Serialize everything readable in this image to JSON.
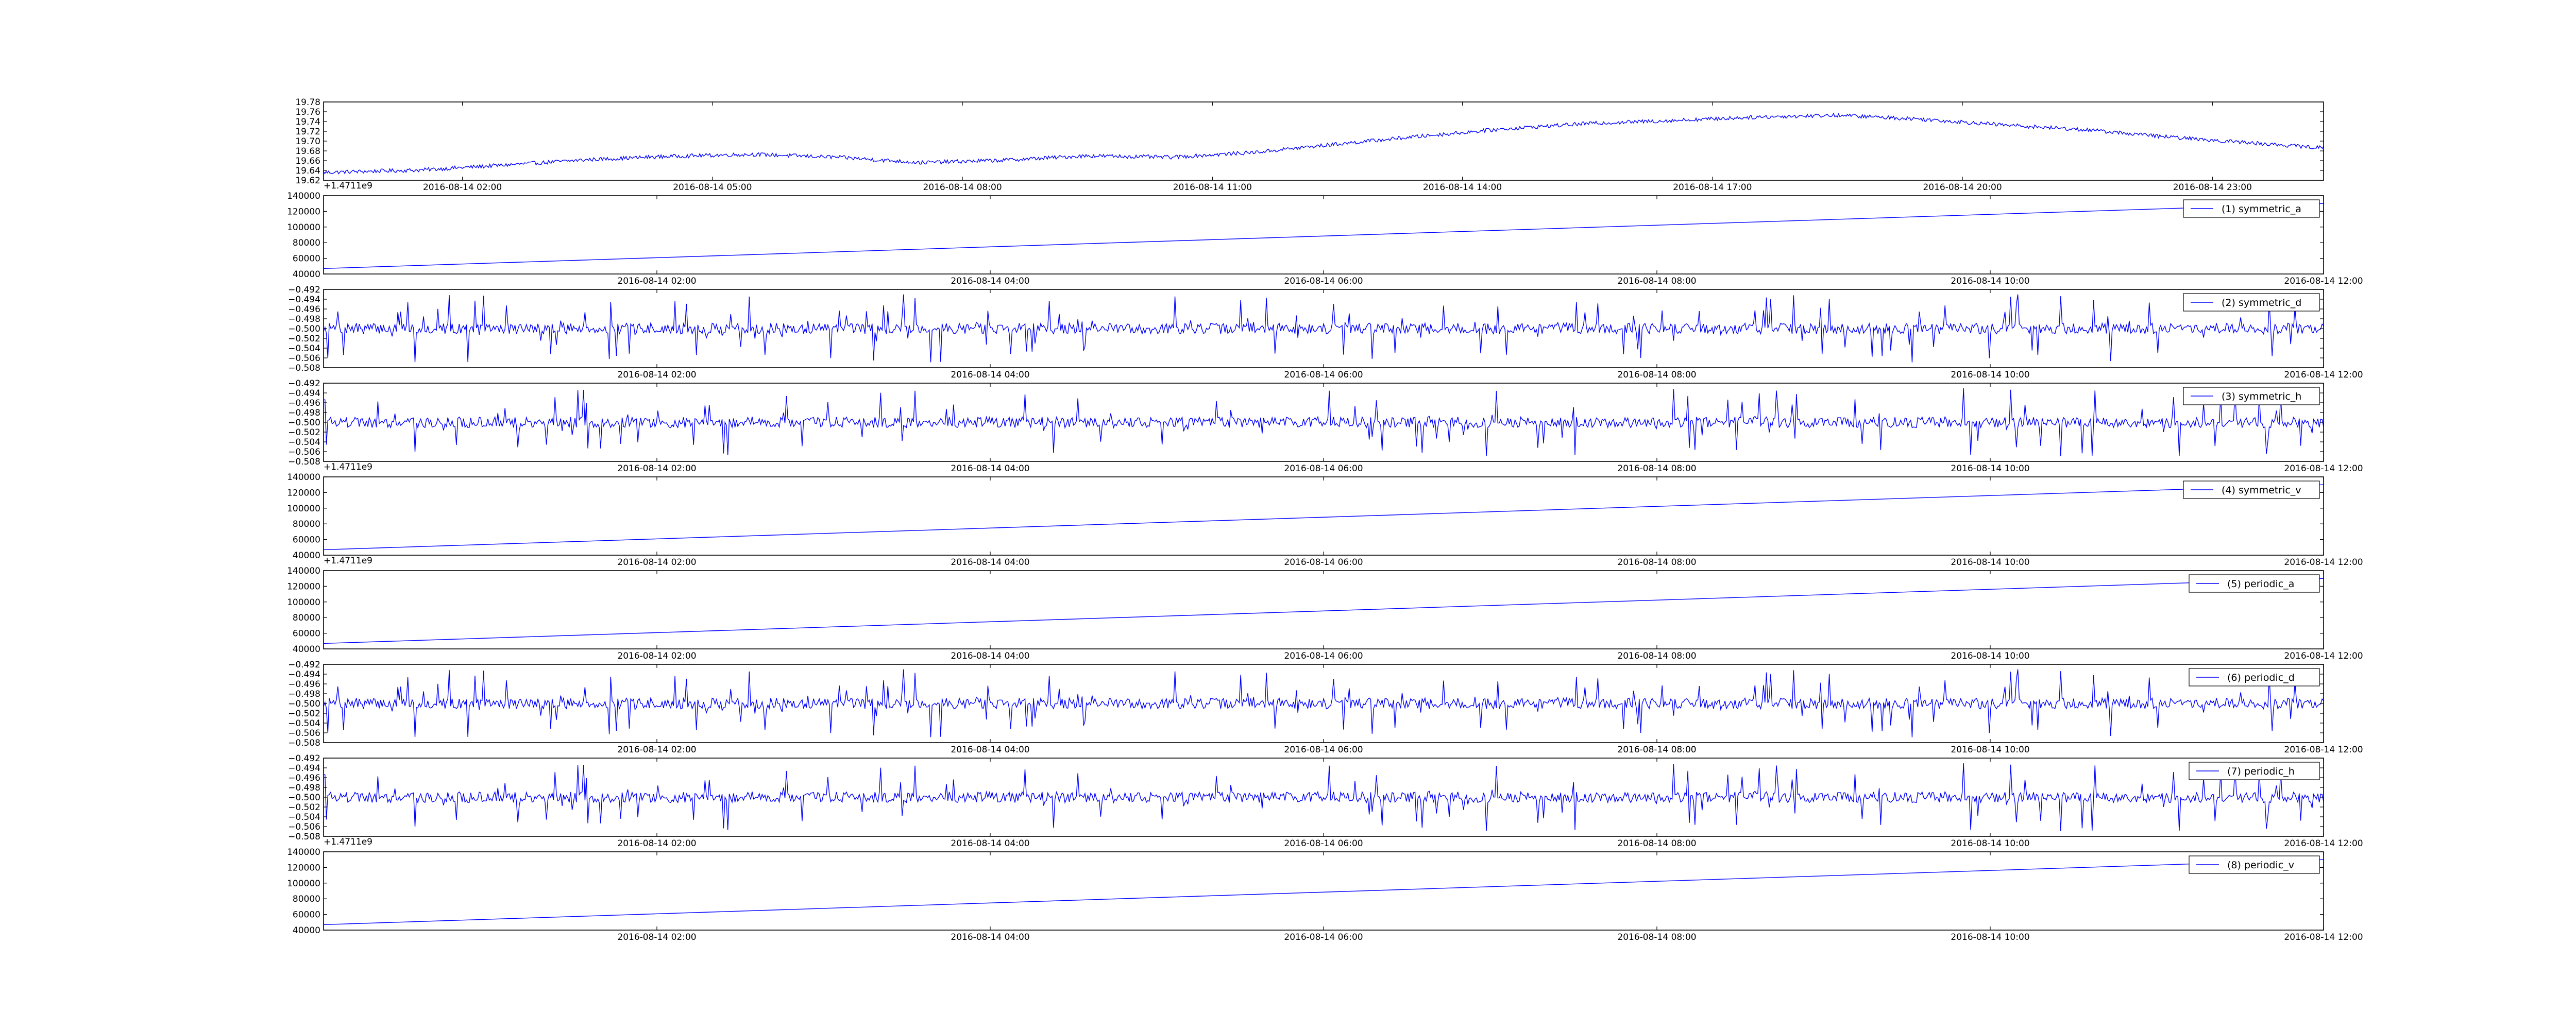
{
  "figure": {
    "background": "#ffffff",
    "line_color": "#0000ff",
    "axes_color": "#000000"
  },
  "chart_data": [
    {
      "type": "line",
      "legend": "",
      "x_type": "time",
      "x": [
        "2016-08-14 00:20",
        "2016-08-14 01:30",
        "2016-08-14 02:30",
        "2016-08-14 03:30",
        "2016-08-14 04:30",
        "2016-08-14 05:30",
        "2016-08-14 06:30",
        "2016-08-14 07:30",
        "2016-08-14 08:30",
        "2016-08-14 09:30",
        "2016-08-14 10:30",
        "2016-08-14 11:30",
        "2016-08-14 12:30",
        "2016-08-14 13:30",
        "2016-08-14 14:30",
        "2016-08-14 15:30",
        "2016-08-14 16:30",
        "2016-08-14 17:30",
        "2016-08-14 18:30",
        "2016-08-14 19:30",
        "2016-08-14 20:30",
        "2016-08-14 21:30",
        "2016-08-14 22:30",
        "2016-08-14 23:30",
        "2016-08-15 00:20"
      ],
      "y": [
        19.636,
        19.641,
        19.651,
        19.662,
        19.669,
        19.673,
        19.667,
        19.656,
        19.661,
        19.67,
        19.667,
        19.677,
        19.694,
        19.71,
        19.725,
        19.736,
        19.742,
        19.749,
        19.753,
        19.745,
        19.733,
        19.723,
        19.708,
        19.696,
        19.686
      ],
      "noise_amplitude": 0.004,
      "xlim": [
        "2016-08-14 00:20",
        "2016-08-15 00:20"
      ],
      "ylim": [
        19.62,
        19.78
      ],
      "y_ticks": [
        "19.62",
        "19.64",
        "19.66",
        "19.68",
        "19.70",
        "19.72",
        "19.74",
        "19.76",
        "19.78"
      ],
      "x_ticks": [
        "2016-08-14 02:00",
        "2016-08-14 05:00",
        "2016-08-14 08:00",
        "2016-08-14 11:00",
        "2016-08-14 14:00",
        "2016-08-14 17:00",
        "2016-08-14 20:00",
        "2016-08-14 23:00"
      ],
      "x_tick_positions": [
        "2016-08-14 02:00",
        "2016-08-14 05:00",
        "2016-08-14 08:00",
        "2016-08-14 11:00",
        "2016-08-14 14:00",
        "2016-08-14 17:00",
        "2016-08-14 20:00",
        "2016-08-14 23:00"
      ],
      "offset_text": "+1.4711e9",
      "grid": false
    },
    {
      "type": "line",
      "legend": "(1) symmetric_a",
      "legend_position": "top-right",
      "x_type": "time",
      "x": [
        "2016-08-14 00:00",
        "2016-08-14 12:00"
      ],
      "y": [
        47000,
        130000
      ],
      "xlim": [
        "2016-08-14 00:00",
        "2016-08-14 12:00"
      ],
      "ylim": [
        40000,
        140000
      ],
      "y_ticks": [
        "40000",
        "60000",
        "80000",
        "100000",
        "120000",
        "140000"
      ],
      "x_ticks": [
        "2016-08-14 02:00",
        "2016-08-14 04:00",
        "2016-08-14 06:00",
        "2016-08-14 08:00",
        "2016-08-14 10:00",
        "2016-08-14 12:00"
      ],
      "x_tick_positions": [
        "2016-08-14 02:00",
        "2016-08-14 04:00",
        "2016-08-14 06:00",
        "2016-08-14 08:00",
        "2016-08-14 10:00",
        "2016-08-14 12:00"
      ],
      "offset_text": "",
      "grid": false
    },
    {
      "type": "line",
      "legend": "(2) symmetric_d",
      "legend_position": "top-right",
      "x_type": "time",
      "x": [
        "2016-08-14 00:00",
        "2016-08-14 12:00"
      ],
      "y_baseline": -0.5,
      "noise_amplitude": 0.0022,
      "spike_amplitude": 0.007,
      "samples": 1400,
      "seed": 7,
      "xlim": [
        "2016-08-14 00:00",
        "2016-08-14 12:00"
      ],
      "ylim": [
        -0.508,
        -0.492
      ],
      "y_ticks": [
        "−0.508",
        "−0.506",
        "−0.504",
        "−0.502",
        "−0.500",
        "−0.498",
        "−0.496",
        "−0.494",
        "−0.492"
      ],
      "x_ticks": [
        "2016-08-14 02:00",
        "2016-08-14 04:00",
        "2016-08-14 06:00",
        "2016-08-14 08:00",
        "2016-08-14 10:00",
        "2016-08-14 12:00"
      ],
      "x_tick_positions": [
        "2016-08-14 02:00",
        "2016-08-14 04:00",
        "2016-08-14 06:00",
        "2016-08-14 08:00",
        "2016-08-14 10:00",
        "2016-08-14 12:00"
      ],
      "offset_text": "",
      "grid": false
    },
    {
      "type": "line",
      "legend": "(3) symmetric_h",
      "legend_position": "top-right",
      "x_type": "time",
      "x": [
        "2016-08-14 00:00",
        "2016-08-14 12:00"
      ],
      "y_baseline": -0.5,
      "noise_amplitude": 0.0022,
      "spike_amplitude": 0.007,
      "samples": 1400,
      "seed": 19,
      "xlim": [
        "2016-08-14 00:00",
        "2016-08-14 12:00"
      ],
      "ylim": [
        -0.508,
        -0.492
      ],
      "y_ticks": [
        "−0.508",
        "−0.506",
        "−0.504",
        "−0.502",
        "−0.500",
        "−0.498",
        "−0.496",
        "−0.494",
        "−0.492"
      ],
      "x_ticks": [
        "2016-08-14 02:00",
        "2016-08-14 04:00",
        "2016-08-14 06:00",
        "2016-08-14 08:00",
        "2016-08-14 10:00",
        "2016-08-14 12:00"
      ],
      "x_tick_positions": [
        "2016-08-14 02:00",
        "2016-08-14 04:00",
        "2016-08-14 06:00",
        "2016-08-14 08:00",
        "2016-08-14 10:00",
        "2016-08-14 12:00"
      ],
      "offset_text": "+1.4711e9",
      "grid": false
    },
    {
      "type": "line",
      "legend": "(4) symmetric_v",
      "legend_position": "top-right",
      "x_type": "time",
      "x": [
        "2016-08-14 00:00",
        "2016-08-14 12:00"
      ],
      "y": [
        47000,
        130000
      ],
      "xlim": [
        "2016-08-14 00:00",
        "2016-08-14 12:00"
      ],
      "ylim": [
        40000,
        140000
      ],
      "y_ticks": [
        "40000",
        "60000",
        "80000",
        "100000",
        "120000",
        "140000"
      ],
      "x_ticks": [
        "2016-08-14 02:00",
        "2016-08-14 04:00",
        "2016-08-14 06:00",
        "2016-08-14 08:00",
        "2016-08-14 10:00",
        "2016-08-14 12:00"
      ],
      "x_tick_positions": [
        "2016-08-14 02:00",
        "2016-08-14 04:00",
        "2016-08-14 06:00",
        "2016-08-14 08:00",
        "2016-08-14 10:00",
        "2016-08-14 12:00"
      ],
      "offset_text": "+1.4711e9",
      "grid": false
    },
    {
      "type": "line",
      "legend": "(5) periodic_a",
      "legend_position": "top-right",
      "x_type": "time",
      "x": [
        "2016-08-14 00:00",
        "2016-08-14 12:00"
      ],
      "y": [
        47000,
        130000
      ],
      "xlim": [
        "2016-08-14 00:00",
        "2016-08-14 12:00"
      ],
      "ylim": [
        40000,
        140000
      ],
      "y_ticks": [
        "40000",
        "60000",
        "80000",
        "100000",
        "120000",
        "140000"
      ],
      "x_ticks": [
        "2016-08-14 02:00",
        "2016-08-14 04:00",
        "2016-08-14 06:00",
        "2016-08-14 08:00",
        "2016-08-14 10:00",
        "2016-08-14 12:00"
      ],
      "x_tick_positions": [
        "2016-08-14 02:00",
        "2016-08-14 04:00",
        "2016-08-14 06:00",
        "2016-08-14 08:00",
        "2016-08-14 10:00",
        "2016-08-14 12:00"
      ],
      "offset_text": "",
      "grid": false
    },
    {
      "type": "line",
      "legend": "(6) periodic_d",
      "legend_position": "top-right",
      "x_type": "time",
      "x": [
        "2016-08-14 00:00",
        "2016-08-14 12:00"
      ],
      "y_baseline": -0.5,
      "noise_amplitude": 0.0022,
      "spike_amplitude": 0.007,
      "samples": 1400,
      "seed": 7,
      "xlim": [
        "2016-08-14 00:00",
        "2016-08-14 12:00"
      ],
      "ylim": [
        -0.508,
        -0.492
      ],
      "y_ticks": [
        "−0.508",
        "−0.506",
        "−0.504",
        "−0.502",
        "−0.500",
        "−0.498",
        "−0.496",
        "−0.494",
        "−0.492"
      ],
      "x_ticks": [
        "2016-08-14 02:00",
        "2016-08-14 04:00",
        "2016-08-14 06:00",
        "2016-08-14 08:00",
        "2016-08-14 10:00",
        "2016-08-14 12:00"
      ],
      "x_tick_positions": [
        "2016-08-14 02:00",
        "2016-08-14 04:00",
        "2016-08-14 06:00",
        "2016-08-14 08:00",
        "2016-08-14 10:00",
        "2016-08-14 12:00"
      ],
      "offset_text": "",
      "grid": false
    },
    {
      "type": "line",
      "legend": "(7) periodic_h",
      "legend_position": "top-right",
      "x_type": "time",
      "x": [
        "2016-08-14 00:00",
        "2016-08-14 12:00"
      ],
      "y_baseline": -0.5,
      "noise_amplitude": 0.0022,
      "spike_amplitude": 0.007,
      "samples": 1400,
      "seed": 19,
      "xlim": [
        "2016-08-14 00:00",
        "2016-08-14 12:00"
      ],
      "ylim": [
        -0.508,
        -0.492
      ],
      "y_ticks": [
        "−0.508",
        "−0.506",
        "−0.504",
        "−0.502",
        "−0.500",
        "−0.498",
        "−0.496",
        "−0.494",
        "−0.492"
      ],
      "x_ticks": [
        "2016-08-14 02:00",
        "2016-08-14 04:00",
        "2016-08-14 06:00",
        "2016-08-14 08:00",
        "2016-08-14 10:00",
        "2016-08-14 12:00"
      ],
      "x_tick_positions": [
        "2016-08-14 02:00",
        "2016-08-14 04:00",
        "2016-08-14 06:00",
        "2016-08-14 08:00",
        "2016-08-14 10:00",
        "2016-08-14 12:00"
      ],
      "offset_text": "+1.4711e9",
      "grid": false
    },
    {
      "type": "line",
      "legend": "(8) periodic_v",
      "legend_position": "top-right",
      "x_type": "time",
      "x": [
        "2016-08-14 00:00",
        "2016-08-14 12:00"
      ],
      "y": [
        47000,
        130000
      ],
      "xlim": [
        "2016-08-14 00:00",
        "2016-08-14 12:00"
      ],
      "ylim": [
        40000,
        140000
      ],
      "y_ticks": [
        "40000",
        "60000",
        "80000",
        "100000",
        "120000",
        "140000"
      ],
      "x_ticks": [
        "2016-08-14 02:00",
        "2016-08-14 04:00",
        "2016-08-14 06:00",
        "2016-08-14 08:00",
        "2016-08-14 10:00",
        "2016-08-14 12:00"
      ],
      "x_tick_positions": [
        "2016-08-14 02:00",
        "2016-08-14 04:00",
        "2016-08-14 06:00",
        "2016-08-14 08:00",
        "2016-08-14 10:00",
        "2016-08-14 12:00"
      ],
      "offset_text": "",
      "grid": false
    }
  ]
}
